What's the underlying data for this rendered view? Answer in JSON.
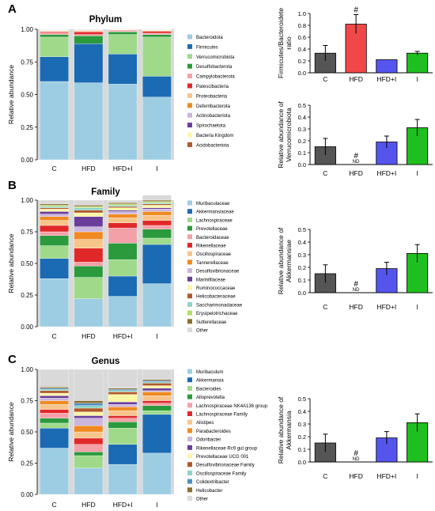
{
  "panel_labels": [
    "A",
    "B",
    "C"
  ],
  "colors": {
    "C": "#555555",
    "HFD": "#f04848",
    "HFD+I": "#5555ee",
    "I": "#1fbf1f",
    "panel_bg": "#d9d9d9"
  },
  "chart_data": [
    {
      "id": "phylum",
      "type": "bar",
      "stacked": true,
      "title": "Phylum",
      "ylabel": "Relative abundance",
      "categories": [
        "C",
        "HFD",
        "HFD+I",
        "I"
      ],
      "ylim": [
        0,
        1
      ],
      "yticks": [
        "0.00",
        "0.25",
        "0.50",
        "0.75",
        "1.00"
      ],
      "series": [
        {
          "name": "Bacteroidota",
          "color": "#9dcde3",
          "values": [
            0.6,
            0.59,
            0.58,
            0.48
          ]
        },
        {
          "name": "Firmicutes",
          "color": "#1a6bb3",
          "values": [
            0.19,
            0.3,
            0.23,
            0.16
          ]
        },
        {
          "name": "Verrucomicrobiota",
          "color": "#9fd98a",
          "values": [
            0.15,
            0.0,
            0.15,
            0.3
          ]
        },
        {
          "name": "Desulfobacterota",
          "color": "#2a9a3c",
          "values": [
            0.02,
            0.06,
            0.02,
            0.02
          ]
        },
        {
          "name": "Campylobacterota",
          "color": "#f4a0a8",
          "values": [
            0.012,
            0.01,
            0.008,
            0.01
          ]
        },
        {
          "name": "Patescibacteria",
          "color": "#e02828",
          "values": [
            0.008,
            0.02,
            0.005,
            0.015
          ]
        },
        {
          "name": "Proteobacteria",
          "color": "#f7c58a",
          "values": [
            0.005,
            0.005,
            0.003,
            0.005
          ]
        },
        {
          "name": "Deferribacterota",
          "color": "#f08a20",
          "values": [
            0.003,
            0.004,
            0.002,
            0.003
          ]
        },
        {
          "name": "Actinobacteriota",
          "color": "#cbb6dd",
          "values": [
            0.003,
            0.003,
            0.002,
            0.002
          ]
        },
        {
          "name": "Spirochaetota",
          "color": "#6a3d9a",
          "values": [
            0.002,
            0.002,
            0.001,
            0.001
          ]
        },
        {
          "name": "Bacteria Kingdom",
          "color": "#fdf7a6",
          "values": [
            0.002,
            0.002,
            0.001,
            0.001
          ]
        },
        {
          "name": "Acidobacteriota",
          "color": "#b15928",
          "values": [
            0.002,
            0.001,
            0.001,
            0.001
          ]
        }
      ]
    },
    {
      "id": "family",
      "type": "bar",
      "stacked": true,
      "title": "Family",
      "ylabel": "Relative abundance",
      "categories": [
        "C",
        "HFD",
        "HFD+I",
        "I"
      ],
      "ylim": [
        0,
        1
      ],
      "yticks": [
        "0.00",
        "0.25",
        "0.50",
        "0.75",
        "1.00"
      ],
      "series": [
        {
          "name": "Muribaculaceae",
          "color": "#9dcde3",
          "values": [
            0.38,
            0.22,
            0.24,
            0.34
          ]
        },
        {
          "name": "Akkermansiaceae",
          "color": "#1a6bb3",
          "values": [
            0.16,
            0.0,
            0.16,
            0.31
          ]
        },
        {
          "name": "Lachnospiraceae",
          "color": "#9fd98a",
          "values": [
            0.1,
            0.17,
            0.13,
            0.05
          ]
        },
        {
          "name": "Prevotellaceae",
          "color": "#2a9a3c",
          "values": [
            0.08,
            0.09,
            0.13,
            0.07
          ]
        },
        {
          "name": "Bacteroidaceae",
          "color": "#f4a0a8",
          "values": [
            0.03,
            0.03,
            0.12,
            0.03
          ]
        },
        {
          "name": "Rikenellaceae",
          "color": "#e02828",
          "values": [
            0.05,
            0.11,
            0.04,
            0.04
          ]
        },
        {
          "name": "Oscillospiraceae",
          "color": "#f7c58a",
          "values": [
            0.04,
            0.07,
            0.04,
            0.04
          ]
        },
        {
          "name": "Tannerellaceae",
          "color": "#f08a20",
          "values": [
            0.03,
            0.06,
            0.03,
            0.03
          ]
        },
        {
          "name": "Desulfovibrionaceae",
          "color": "#cbb6dd",
          "values": [
            0.02,
            0.04,
            0.02,
            0.02
          ]
        },
        {
          "name": "Marinifilaceae",
          "color": "#6a3d9a",
          "values": [
            0.02,
            0.08,
            0.01,
            0.01
          ]
        },
        {
          "name": "Ruminococcaceae",
          "color": "#fdf7a6",
          "values": [
            0.02,
            0.03,
            0.02,
            0.02
          ]
        },
        {
          "name": "Helicobacteraceae",
          "color": "#b15928",
          "values": [
            0.01,
            0.02,
            0.01,
            0.01
          ]
        },
        {
          "name": "Saccharimonadaceae",
          "color": "#8dd3c7",
          "values": [
            0.01,
            0.02,
            0.01,
            0.01
          ]
        },
        {
          "name": "Erysipelotrichaceae",
          "color": "#b3de69",
          "values": [
            0.01,
            0.01,
            0.01,
            0.01
          ]
        },
        {
          "name": "Sutterellaceae",
          "color": "#8c6d31",
          "values": [
            0.01,
            0.01,
            0.01,
            0.01
          ]
        },
        {
          "name": "Other",
          "color": "#d9d9d9",
          "values": [
            0.03,
            0.04,
            0.02,
            0.04
          ]
        }
      ]
    },
    {
      "id": "genus",
      "type": "bar",
      "stacked": true,
      "title": "Genus",
      "ylabel": "Relative abundance",
      "categories": [
        "C",
        "HFD",
        "HFD+I",
        "I"
      ],
      "ylim": [
        0,
        1
      ],
      "yticks": [
        "0.00",
        "0.25",
        "0.50",
        "0.75",
        "1.00"
      ],
      "series": [
        {
          "name": "Muribaculum",
          "color": "#9dcde3",
          "values": [
            0.37,
            0.21,
            0.24,
            0.33
          ]
        },
        {
          "name": "Akkermansia",
          "color": "#1a6bb3",
          "values": [
            0.16,
            0.0,
            0.16,
            0.31
          ]
        },
        {
          "name": "Bacteroides",
          "color": "#9fd98a",
          "values": [
            0.04,
            0.1,
            0.13,
            0.03
          ]
        },
        {
          "name": "Alloprevotella",
          "color": "#2a9a3c",
          "values": [
            0.04,
            0.03,
            0.05,
            0.04
          ]
        },
        {
          "name": "Lachnospiraceae NK4A136 group",
          "color": "#f4a0a8",
          "values": [
            0.04,
            0.06,
            0.03,
            0.02
          ]
        },
        {
          "name": "Lachnospiraceae Family",
          "color": "#e02828",
          "values": [
            0.03,
            0.05,
            0.02,
            0.02
          ]
        },
        {
          "name": "Alistipes",
          "color": "#f7c58a",
          "values": [
            0.04,
            0.05,
            0.04,
            0.04
          ]
        },
        {
          "name": "Parabacteroides",
          "color": "#f08a20",
          "values": [
            0.03,
            0.05,
            0.03,
            0.03
          ]
        },
        {
          "name": "Odoribacter",
          "color": "#cbb6dd",
          "values": [
            0.02,
            0.06,
            0.02,
            0.01
          ]
        },
        {
          "name": "Rikenellaceae Rc9 gut group",
          "color": "#6a3d9a",
          "values": [
            0.02,
            0.02,
            0.02,
            0.02
          ]
        },
        {
          "name": "Prevotellaceae UCG 001",
          "color": "#fdf7a6",
          "values": [
            0.02,
            0.03,
            0.06,
            0.02
          ]
        },
        {
          "name": "Desulfovibrionaceae Family",
          "color": "#b15928",
          "values": [
            0.02,
            0.03,
            0.02,
            0.02
          ]
        },
        {
          "name": "Oscillospiraceae Family",
          "color": "#8dd3c7",
          "values": [
            0.01,
            0.02,
            0.01,
            0.01
          ]
        },
        {
          "name": "Colidextribacter",
          "color": "#4f8fbf",
          "values": [
            0.01,
            0.02,
            0.01,
            0.01
          ]
        },
        {
          "name": "Helicobacter",
          "color": "#8c6d31",
          "values": [
            0.01,
            0.02,
            0.01,
            0.01
          ]
        },
        {
          "name": "Other",
          "color": "#d9d9d9",
          "values": [
            0.14,
            0.25,
            0.15,
            0.08
          ]
        }
      ]
    },
    {
      "id": "fb_ratio",
      "type": "bar",
      "ylabel": "Firmicutes/Bacteroidete ratio",
      "categories": [
        "C",
        "HFD",
        "HFD+I",
        "I"
      ],
      "values": [
        0.33,
        0.82,
        0.22,
        0.33
      ],
      "errors": [
        0.13,
        0.16,
        0,
        0.03
      ],
      "annotations": [
        "",
        "#",
        "",
        ""
      ],
      "ylim": [
        0,
        1.0
      ],
      "yticks": [
        "0.0",
        "0.2",
        "0.4",
        "0.6",
        "0.8",
        "1.0"
      ]
    },
    {
      "id": "verruco",
      "type": "bar",
      "ylabel": "Relative abundance of Verrucomicrobiota",
      "categories": [
        "C",
        "HFD",
        "HFD+I",
        "I"
      ],
      "values": [
        0.15,
        0,
        0.19,
        0.31
      ],
      "errors": [
        0.07,
        0,
        0.05,
        0.07
      ],
      "annotations": [
        "",
        "#",
        "",
        ""
      ],
      "value_labels": [
        "",
        "ND",
        "",
        ""
      ],
      "ylim": [
        0,
        0.5
      ],
      "yticks": [
        "0.0",
        "0.1",
        "0.2",
        "0.3",
        "0.4",
        "0.5"
      ]
    },
    {
      "id": "akk_family",
      "type": "bar",
      "ylabel": "Relative abundance of Akkermansiae",
      "categories": [
        "C",
        "HFD",
        "HFD+I",
        "I"
      ],
      "values": [
        0.15,
        0,
        0.19,
        0.31
      ],
      "errors": [
        0.07,
        0,
        0.05,
        0.07
      ],
      "annotations": [
        "",
        "#",
        "",
        ""
      ],
      "value_labels": [
        "",
        "ND",
        "",
        ""
      ],
      "ylim": [
        0,
        0.5
      ],
      "yticks": [
        "0.0",
        "0.1",
        "0.2",
        "0.3",
        "0.4",
        "0.5"
      ]
    },
    {
      "id": "akk_genus",
      "type": "bar",
      "ylabel": "Relative abundance of Akkermansia",
      "categories": [
        "C",
        "HFD",
        "HFD+I",
        "I"
      ],
      "values": [
        0.15,
        0,
        0.19,
        0.31
      ],
      "errors": [
        0.07,
        0,
        0.05,
        0.07
      ],
      "annotations": [
        "",
        "#",
        "",
        ""
      ],
      "value_labels": [
        "",
        "ND",
        "",
        ""
      ],
      "ylim": [
        0,
        0.5
      ],
      "yticks": [
        "0.0",
        "0.1",
        "0.2",
        "0.3",
        "0.4",
        "0.5"
      ]
    }
  ]
}
